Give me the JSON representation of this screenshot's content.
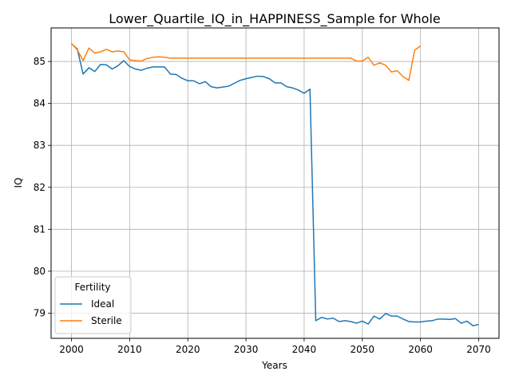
{
  "chart_data": {
    "type": "line",
    "title": "Lower_Quartile_IQ_in_HAPPINESS_Sample for Whole",
    "xlabel": "Years",
    "ylabel": "IQ",
    "xlim": [
      1996.5,
      2073.5
    ],
    "ylim": [
      78.4,
      85.8
    ],
    "xticks": [
      2000,
      2010,
      2020,
      2030,
      2040,
      2050,
      2060,
      2070
    ],
    "yticks": [
      79,
      80,
      81,
      82,
      83,
      84,
      85
    ],
    "grid": true,
    "legend": {
      "title": "Fertility",
      "position": "lower-left"
    },
    "series": [
      {
        "name": "Ideal",
        "color": "#1f77b4",
        "x": [
          2000,
          2001,
          2002,
          2003,
          2004,
          2005,
          2006,
          2007,
          2008,
          2009,
          2010,
          2011,
          2012,
          2013,
          2014,
          2015,
          2016,
          2017,
          2018,
          2019,
          2020,
          2021,
          2022,
          2023,
          2024,
          2025,
          2026,
          2027,
          2028,
          2029,
          2030,
          2031,
          2032,
          2033,
          2034,
          2035,
          2036,
          2037,
          2038,
          2039,
          2040,
          2041,
          2042,
          2043,
          2044,
          2045,
          2046,
          2047,
          2048,
          2049,
          2050,
          2051,
          2052,
          2053,
          2054,
          2055,
          2056,
          2057,
          2058,
          2059,
          2060,
          2061,
          2062,
          2063,
          2064,
          2065,
          2066,
          2067,
          2068,
          2069,
          2070
        ],
        "values": [
          85.42,
          85.3,
          84.7,
          84.85,
          84.76,
          84.93,
          84.92,
          84.82,
          84.9,
          85.02,
          84.88,
          84.82,
          84.79,
          84.84,
          84.87,
          84.87,
          84.87,
          84.7,
          84.69,
          84.6,
          84.54,
          84.54,
          84.47,
          84.52,
          84.4,
          84.37,
          84.39,
          84.41,
          84.48,
          84.55,
          84.59,
          84.62,
          84.65,
          84.64,
          84.59,
          84.49,
          84.49,
          84.4,
          84.37,
          84.32,
          84.24,
          84.34,
          78.82,
          78.9,
          78.86,
          78.88,
          78.8,
          78.82,
          78.8,
          78.76,
          78.81,
          78.74,
          78.93,
          78.86,
          78.99,
          78.93,
          78.93,
          78.86,
          78.8,
          78.79,
          78.79,
          78.81,
          78.82,
          78.86,
          78.86,
          78.85,
          78.87,
          78.76,
          78.81,
          78.7,
          78.73
        ]
      },
      {
        "name": "Sterile",
        "color": "#ff7f0e",
        "x": [
          2000,
          2001,
          2002,
          2003,
          2004,
          2005,
          2006,
          2007,
          2008,
          2009,
          2010,
          2011,
          2012,
          2013,
          2014,
          2015,
          2016,
          2017,
          2018,
          2019,
          2020,
          2021,
          2022,
          2023,
          2024,
          2025,
          2026,
          2027,
          2028,
          2029,
          2030,
          2031,
          2032,
          2033,
          2034,
          2035,
          2036,
          2037,
          2038,
          2039,
          2040,
          2041,
          2042,
          2043,
          2044,
          2045,
          2046,
          2047,
          2048,
          2049,
          2050,
          2051,
          2052,
          2053,
          2054,
          2055,
          2056,
          2057,
          2058,
          2059,
          2060
        ],
        "values": [
          85.43,
          85.28,
          85.02,
          85.32,
          85.2,
          85.23,
          85.29,
          85.23,
          85.25,
          85.23,
          85.04,
          85.02,
          85.01,
          85.07,
          85.1,
          85.11,
          85.1,
          85.08,
          85.08,
          85.08,
          85.08,
          85.08,
          85.08,
          85.08,
          85.08,
          85.08,
          85.08,
          85.08,
          85.08,
          85.08,
          85.08,
          85.08,
          85.08,
          85.08,
          85.08,
          85.08,
          85.08,
          85.08,
          85.08,
          85.08,
          85.08,
          85.08,
          85.08,
          85.08,
          85.08,
          85.08,
          85.08,
          85.08,
          85.08,
          85.01,
          85.01,
          85.1,
          84.91,
          84.97,
          84.91,
          84.75,
          84.78,
          84.64,
          84.55,
          85.27,
          85.37
        ]
      }
    ]
  }
}
